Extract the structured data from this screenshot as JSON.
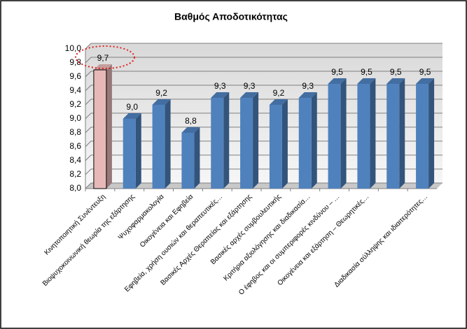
{
  "chart_data": {
    "type": "bar3d",
    "title": "Βαθμός Αποδοτικότητας",
    "categories": [
      "Κινητοποιητική Συνέντευξη",
      "Βιοψυχοκοινωνική θεωρία της εξάρτησης",
      "Ψυχοφαρμακολογία",
      "Οικογένεια και Εφηβεία",
      "Εφηβεία, χρήση ουσιών και θεραπευτικές…",
      "Βασικές Αρχές Θεραπείας και εξάρτησης",
      "Βασικές αρχές συμβουλευτικής",
      "Κριτήρια αξιολόγησης και διαδικασία…",
      "Ο έφηβος και οι συμπεριφορές κινδύνου – …",
      "Οικογένεια και εξάρτηση – Θεωρητικές…",
      null,
      "Διαδικασία σύλληψης και ιδιαιτερότητες…"
    ],
    "values": [
      9.7,
      9.0,
      9.2,
      8.8,
      9.3,
      9.3,
      9.2,
      9.3,
      9.5,
      9.5,
      9.5,
      9.5
    ],
    "value_labels": [
      "9,7",
      "9,0",
      "9,2",
      "8,8",
      "9,3",
      "9,3",
      "9,2",
      "9,3",
      "9,5",
      "9,5",
      "9,5",
      "9,5"
    ],
    "colors": [
      "#e6b9b8",
      "#4f81bd",
      "#4f81bd",
      "#4f81bd",
      "#4f81bd",
      "#4f81bd",
      "#4f81bd",
      "#4f81bd",
      "#4f81bd",
      "#4f81bd",
      "#4f81bd",
      "#4f81bd"
    ],
    "ylim": [
      8,
      10
    ],
    "yticks": [
      {
        "value": 8,
        "label": "8,0"
      },
      {
        "value": 8.2,
        "label": "8,2"
      },
      {
        "value": 8.4,
        "label": "8,4"
      },
      {
        "value": 8.6,
        "label": "8,6"
      },
      {
        "value": 8.8,
        "label": "8,8"
      },
      {
        "value": 9,
        "label": "9,0"
      },
      {
        "value": 9.2,
        "label": "9,2"
      },
      {
        "value": 9.4,
        "label": "9,4"
      },
      {
        "value": 9.6,
        "label": "9,6"
      },
      {
        "value": 9.8,
        "label": "9,8"
      },
      {
        "value": 10,
        "label": "10,0"
      }
    ],
    "grid": true
  }
}
